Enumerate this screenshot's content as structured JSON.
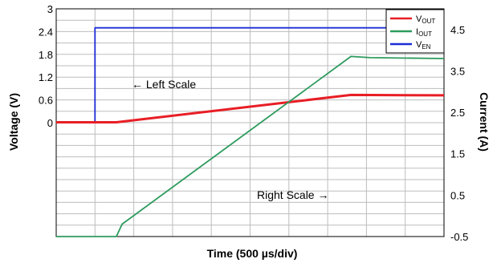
{
  "chart_data": {
    "type": "line",
    "x": {
      "label": "Time (500 µs/div)",
      "divisions": 10,
      "ticks_labeled": false,
      "range": [
        0,
        10
      ]
    },
    "y_left": {
      "label": "Voltage (V)",
      "ticks": [
        "3",
        "2.4",
        "1.8",
        "1.2",
        "0.6",
        "0"
      ],
      "range": [
        -3.0,
        3.0
      ],
      "grid_step": 0.3
    },
    "y_right": {
      "label": "Current (A)",
      "ticks": [
        "4.5",
        "3.5",
        "2.5",
        "1.5",
        "0.5",
        "-0.5"
      ],
      "range": [
        -0.5,
        5.0
      ]
    },
    "grid": true,
    "legend": {
      "position": "top-right",
      "items": [
        {
          "main": "V",
          "sub": "OUT",
          "color": "#e81e25"
        },
        {
          "main": "I",
          "sub": "OUT",
          "color": "#2e9b5e"
        },
        {
          "main": "V",
          "sub": "EN",
          "color": "#1c2dd6"
        }
      ]
    },
    "annotations": {
      "left": "← Left Scale",
      "right": "Right Scale →"
    },
    "series": [
      {
        "axis": "left",
        "color": "#1c2dd6",
        "points": [
          [
            0,
            0
          ],
          [
            1.0,
            0
          ],
          [
            1.0,
            2.5
          ],
          [
            10,
            2.5
          ]
        ]
      },
      {
        "axis": "left",
        "color": "#e81e25",
        "points": [
          [
            0,
            0.01
          ],
          [
            1.55,
            0.01
          ],
          [
            7.6,
            0.73
          ],
          [
            10,
            0.72
          ]
        ]
      },
      {
        "axis": "right",
        "color": "#2e9b5e",
        "points": [
          [
            0,
            -0.5
          ],
          [
            1.55,
            -0.5
          ],
          [
            1.7,
            -0.2
          ],
          [
            7.6,
            3.85
          ],
          [
            8.1,
            3.82
          ],
          [
            10,
            3.8
          ]
        ]
      }
    ]
  }
}
